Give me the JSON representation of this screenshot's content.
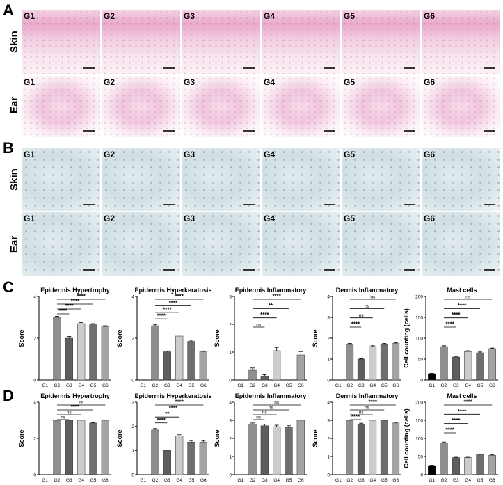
{
  "panels": {
    "A": "A",
    "B": "B",
    "C": "C",
    "D": "D"
  },
  "row_labels": {
    "skin": "Skin",
    "ear": "Ear"
  },
  "group_labels": [
    "G1",
    "G2",
    "G3",
    "G4",
    "G5",
    "G6"
  ],
  "colors": {
    "G1": "#000000",
    "G2": "#8e8e8e",
    "G3": "#5e5e5e",
    "G4": "#cccccc",
    "G5": "#6e6e6e",
    "G6": "#a4a4a4"
  },
  "chart_data": [
    {
      "panel": "C",
      "type": "bar",
      "title": "Epidermis Hypertrophy",
      "ylabel": "Score",
      "categories": [
        "G1",
        "G2",
        "G3",
        "G4",
        "G5",
        "G6"
      ],
      "values": [
        0,
        3.0,
        2.0,
        2.7,
        2.65,
        2.55
      ],
      "errors": [
        0,
        0.05,
        0.08,
        0.05,
        0.05,
        0.05
      ],
      "ylim": [
        0,
        4
      ],
      "yticks": [
        0,
        2,
        4
      ],
      "significance": [
        {
          "from": "G2",
          "to": "G6",
          "label": "****"
        },
        {
          "from": "G2",
          "to": "G5",
          "label": "****"
        },
        {
          "from": "G2",
          "to": "G4",
          "label": "****"
        },
        {
          "from": "G2",
          "to": "G3",
          "label": "****"
        }
      ]
    },
    {
      "panel": "C",
      "type": "bar",
      "title": "Epidermis Hyperkeratosis",
      "ylabel": "Score",
      "categories": [
        "G1",
        "G2",
        "G3",
        "G4",
        "G5",
        "G6"
      ],
      "values": [
        0,
        2.6,
        1.35,
        2.1,
        1.85,
        1.35
      ],
      "errors": [
        0,
        0.06,
        0.04,
        0.05,
        0.05,
        0.04
      ],
      "ylim": [
        0,
        4
      ],
      "yticks": [
        0,
        2,
        4
      ],
      "significance": [
        {
          "from": "G2",
          "to": "G6",
          "label": "****"
        },
        {
          "from": "G2",
          "to": "G5",
          "label": "****"
        },
        {
          "from": "G2",
          "to": "G4",
          "label": "****"
        },
        {
          "from": "G2",
          "to": "G3",
          "label": "****"
        }
      ]
    },
    {
      "panel": "C",
      "type": "bar",
      "title": "Epidermis Inflammatory",
      "ylabel": "Score",
      "categories": [
        "G1",
        "G2",
        "G3",
        "G4",
        "G5",
        "G6"
      ],
      "values": [
        0,
        0.35,
        0.13,
        1.05,
        0,
        0.9
      ],
      "errors": [
        0,
        0.08,
        0.06,
        0.12,
        0,
        0.12
      ],
      "ylim": [
        0,
        3
      ],
      "yticks": [
        0,
        1,
        2,
        3
      ],
      "significance": [
        {
          "from": "G2",
          "to": "G6",
          "label": "****"
        },
        {
          "from": "G2",
          "to": "G5",
          "label": "**"
        },
        {
          "from": "G2",
          "to": "G4",
          "label": "****"
        },
        {
          "from": "G2",
          "to": "G3",
          "label": "ns"
        }
      ]
    },
    {
      "panel": "C",
      "type": "bar",
      "title": "Dermis Inflammatory",
      "ylabel": "Score",
      "categories": [
        "G1",
        "G2",
        "G3",
        "G4",
        "G5",
        "G6"
      ],
      "values": [
        0,
        1.7,
        1.0,
        1.6,
        1.7,
        1.75
      ],
      "errors": [
        0,
        0.05,
        0.02,
        0.04,
        0.05,
        0.04
      ],
      "ylim": [
        0,
        4
      ],
      "yticks": [
        0,
        1,
        2,
        3,
        4
      ],
      "significance": [
        {
          "from": "G2",
          "to": "G6",
          "label": "ns"
        },
        {
          "from": "G2",
          "to": "G5",
          "label": "ns"
        },
        {
          "from": "G2",
          "to": "G4",
          "label": "ns"
        },
        {
          "from": "G2",
          "to": "G3",
          "label": "****"
        }
      ]
    },
    {
      "panel": "C",
      "type": "bar",
      "title": "Mast cells",
      "ylabel": "Cell counting (cells)",
      "categories": [
        "G1",
        "G2",
        "G3",
        "G4",
        "G5",
        "G6"
      ],
      "values": [
        15,
        80,
        55,
        68,
        65,
        75
      ],
      "errors": [
        1,
        2,
        1.5,
        2,
        2,
        1.5
      ],
      "ylim": [
        0,
        200
      ],
      "yticks": [
        0,
        50,
        100,
        150,
        200
      ],
      "significance": [
        {
          "from": "G2",
          "to": "G6",
          "label": "ns"
        },
        {
          "from": "G2",
          "to": "G5",
          "label": "****"
        },
        {
          "from": "G2",
          "to": "G4",
          "label": "****"
        },
        {
          "from": "G2",
          "to": "G3",
          "label": "****"
        }
      ]
    },
    {
      "panel": "D",
      "type": "bar",
      "title": "Epidermis Hypertrophy",
      "ylabel": "Score",
      "categories": [
        "G1",
        "G2",
        "G3",
        "G4",
        "G5",
        "G6"
      ],
      "values": [
        0,
        3.0,
        3.0,
        3.0,
        2.85,
        3.0
      ],
      "errors": [
        0,
        0,
        0,
        0,
        0.03,
        0
      ],
      "ylim": [
        0,
        4
      ],
      "yticks": [
        0,
        2,
        4
      ],
      "significance": [
        {
          "from": "G2",
          "to": "G6",
          "label": "ns"
        },
        {
          "from": "G2",
          "to": "G5",
          "label": "****"
        },
        {
          "from": "G2",
          "to": "G4",
          "label": "ns"
        },
        {
          "from": "G2",
          "to": "G3",
          "label": "ns"
        }
      ]
    },
    {
      "panel": "D",
      "type": "bar",
      "title": "Epidermis Hyperkeratosis",
      "ylabel": "Score",
      "categories": [
        "G1",
        "G2",
        "G3",
        "G4",
        "G5",
        "G6"
      ],
      "values": [
        0,
        1.85,
        1.0,
        1.6,
        1.35,
        1.35
      ],
      "errors": [
        0,
        0.06,
        0,
        0.05,
        0.06,
        0.06
      ],
      "ylim": [
        0,
        3
      ],
      "yticks": [
        0,
        1,
        2,
        3
      ],
      "significance": [
        {
          "from": "G2",
          "to": "G6",
          "label": "****"
        },
        {
          "from": "G2",
          "to": "G5",
          "label": "****"
        },
        {
          "from": "G2",
          "to": "G4",
          "label": "**"
        },
        {
          "from": "G2",
          "to": "G3",
          "label": "****"
        }
      ]
    },
    {
      "panel": "D",
      "type": "bar",
      "title": "Epidermis Inflammatory",
      "ylabel": "Score",
      "categories": [
        "G1",
        "G2",
        "G3",
        "G4",
        "G5",
        "G6"
      ],
      "values": [
        0,
        2.8,
        2.7,
        2.65,
        2.6,
        3.0
      ],
      "errors": [
        0,
        0.05,
        0.08,
        0.08,
        0.1,
        0
      ],
      "ylim": [
        0,
        4
      ],
      "yticks": [
        0,
        1,
        2,
        3,
        4
      ],
      "significance": [
        {
          "from": "G2",
          "to": "G6",
          "label": "ns"
        },
        {
          "from": "G2",
          "to": "G5",
          "label": "ns"
        },
        {
          "from": "G2",
          "to": "G4",
          "label": "ns"
        },
        {
          "from": "G2",
          "to": "G3",
          "label": "ns"
        }
      ]
    },
    {
      "panel": "D",
      "type": "bar",
      "title": "Dermis Inflammatory",
      "ylabel": "Score",
      "categories": [
        "G1",
        "G2",
        "G3",
        "G4",
        "G5",
        "G6"
      ],
      "values": [
        0,
        3.0,
        2.8,
        3.0,
        3.0,
        2.85
      ],
      "errors": [
        0,
        0,
        0.04,
        0,
        0,
        0.04
      ],
      "ylim": [
        0,
        4
      ],
      "yticks": [
        0,
        1,
        2,
        3,
        4
      ],
      "significance": [
        {
          "from": "G2",
          "to": "G6",
          "label": "****"
        },
        {
          "from": "G2",
          "to": "G5",
          "label": "ns"
        },
        {
          "from": "G2",
          "to": "G4",
          "label": "ns"
        },
        {
          "from": "G2",
          "to": "G3",
          "label": "****"
        }
      ]
    },
    {
      "panel": "D",
      "type": "bar",
      "title": "Mast cells",
      "ylabel": "Cell counting (cells)",
      "categories": [
        "G1",
        "G2",
        "G3",
        "G4",
        "G5",
        "G6"
      ],
      "values": [
        25,
        88,
        47,
        47,
        55,
        53
      ],
      "errors": [
        1,
        2,
        1,
        1,
        2,
        1.5
      ],
      "ylim": [
        0,
        200
      ],
      "yticks": [
        0,
        50,
        100,
        150,
        200
      ],
      "significance": [
        {
          "from": "G2",
          "to": "G6",
          "label": "****"
        },
        {
          "from": "G2",
          "to": "G5",
          "label": "****"
        },
        {
          "from": "G2",
          "to": "G4",
          "label": "****"
        },
        {
          "from": "G2",
          "to": "G3",
          "label": "****"
        }
      ]
    }
  ]
}
